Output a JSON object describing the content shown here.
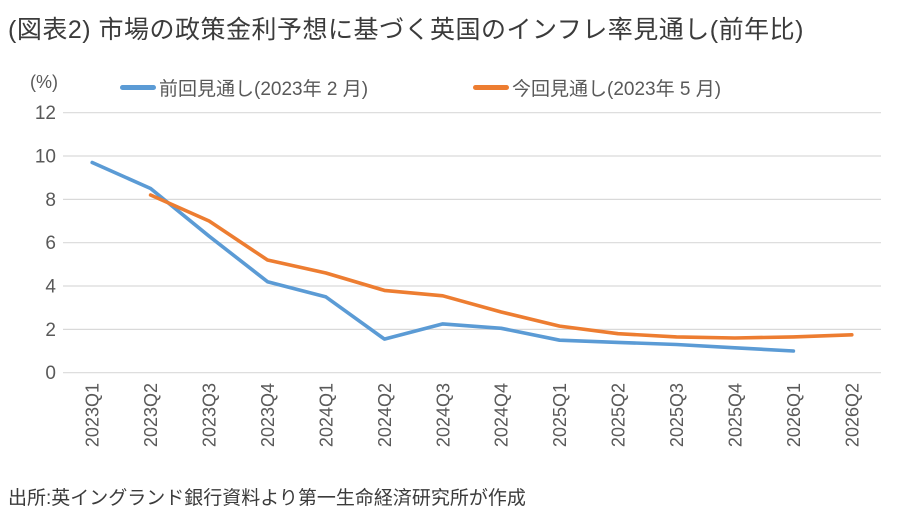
{
  "title": "(図表2) 市場の政策金利予想に基づく英国のインフレ率見通し(前年比)",
  "y_axis_unit_label": "(%)",
  "source_note": "出所:英イングランド銀行資料より第一生命経済研究所が作成",
  "colors": {
    "previous_forecast_line": "#5B9BD5",
    "current_forecast_line": "#ED7D31",
    "gridline": "#D9D9D9",
    "axis_text": "#595959",
    "title_text": "#3b3b3b"
  },
  "chart_data": {
    "type": "line",
    "title": "(図表2) 市場の政策金利予想に基づく英国のインフレ率見通し(前年比)",
    "ylabel": "(%)",
    "xlabel": "",
    "categories": [
      "2023Q1",
      "2023Q2",
      "2023Q3",
      "2023Q4",
      "2024Q1",
      "2024Q2",
      "2024Q3",
      "2024Q4",
      "2025Q1",
      "2025Q2",
      "2025Q3",
      "2025Q4",
      "2026Q1",
      "2026Q2"
    ],
    "series": [
      {
        "name": "前回見通し(2023年 2 月)",
        "color": "#5B9BD5",
        "values": [
          9.7,
          8.5,
          6.3,
          4.2,
          3.5,
          1.55,
          2.25,
          2.05,
          1.5,
          1.4,
          1.3,
          1.15,
          1.0,
          null
        ]
      },
      {
        "name": "今回見通し(2023年 5 月)",
        "color": "#ED7D31",
        "values": [
          null,
          8.2,
          7.0,
          5.2,
          4.6,
          3.8,
          3.55,
          2.8,
          2.15,
          1.8,
          1.65,
          1.6,
          1.65,
          1.75
        ]
      }
    ],
    "ylim": [
      0,
      12
    ],
    "ytick_step": 2,
    "grid": true,
    "legend_position": "top",
    "x_tick_rotation_deg": -90
  }
}
